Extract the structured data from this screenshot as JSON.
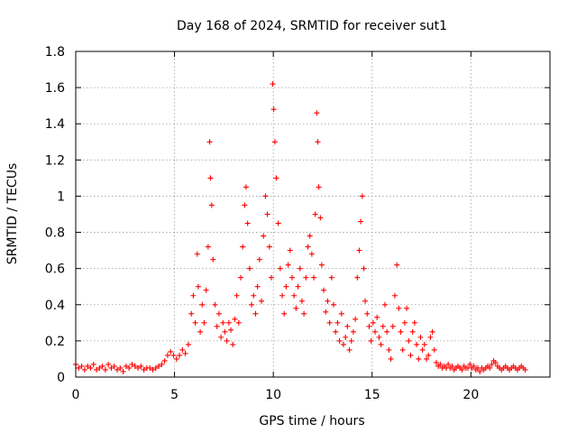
{
  "chart_data": {
    "type": "scatter",
    "title": "Day 168 of 2024, SRMTID for receiver sut1",
    "xlabel": "GPS time / hours",
    "ylabel": "SRMTID / TECUs",
    "xlim": [
      0,
      24
    ],
    "ylim": [
      0,
      1.8
    ],
    "xticks": [
      0,
      5,
      10,
      15,
      20
    ],
    "xtick_labels": [
      "0",
      "5",
      "10",
      "15",
      "20"
    ],
    "yticks": [
      0,
      0.2,
      0.4,
      0.6,
      0.8,
      1.0,
      1.2,
      1.4,
      1.6,
      1.8
    ],
    "ytick_labels": [
      "0",
      "0.2",
      "0.4",
      "0.6",
      "0.8",
      "1",
      "1.2",
      "1.4",
      "1.6",
      "1.8"
    ],
    "grid": true,
    "marker": "plus",
    "series": [
      {
        "name": "SRMTID",
        "color": "#ff0000",
        "points": [
          [
            0.0,
            0.07
          ],
          [
            0.15,
            0.05
          ],
          [
            0.3,
            0.06
          ],
          [
            0.45,
            0.04
          ],
          [
            0.6,
            0.06
          ],
          [
            0.75,
            0.05
          ],
          [
            0.9,
            0.07
          ],
          [
            1.05,
            0.04
          ],
          [
            1.2,
            0.05
          ],
          [
            1.35,
            0.06
          ],
          [
            1.5,
            0.04
          ],
          [
            1.65,
            0.07
          ],
          [
            1.8,
            0.05
          ],
          [
            1.95,
            0.06
          ],
          [
            2.1,
            0.04
          ],
          [
            2.25,
            0.05
          ],
          [
            2.4,
            0.03
          ],
          [
            2.55,
            0.06
          ],
          [
            2.7,
            0.05
          ],
          [
            2.85,
            0.07
          ],
          [
            3.0,
            0.06
          ],
          [
            3.15,
            0.05
          ],
          [
            3.3,
            0.06
          ],
          [
            3.45,
            0.04
          ],
          [
            3.6,
            0.05
          ],
          [
            3.75,
            0.05
          ],
          [
            3.9,
            0.04
          ],
          [
            4.05,
            0.05
          ],
          [
            4.2,
            0.06
          ],
          [
            4.35,
            0.07
          ],
          [
            4.5,
            0.09
          ],
          [
            4.65,
            0.12
          ],
          [
            4.8,
            0.14
          ],
          [
            4.95,
            0.12
          ],
          [
            5.1,
            0.1
          ],
          [
            5.25,
            0.12
          ],
          [
            5.4,
            0.15
          ],
          [
            5.55,
            0.13
          ],
          [
            5.7,
            0.18
          ],
          [
            5.85,
            0.35
          ],
          [
            5.95,
            0.45
          ],
          [
            6.05,
            0.3
          ],
          [
            6.15,
            0.68
          ],
          [
            6.2,
            0.5
          ],
          [
            6.3,
            0.25
          ],
          [
            6.4,
            0.4
          ],
          [
            6.5,
            0.3
          ],
          [
            6.6,
            0.48
          ],
          [
            6.7,
            0.72
          ],
          [
            6.78,
            1.3
          ],
          [
            6.82,
            1.1
          ],
          [
            6.88,
            0.95
          ],
          [
            6.95,
            0.65
          ],
          [
            7.05,
            0.4
          ],
          [
            7.15,
            0.28
          ],
          [
            7.25,
            0.35
          ],
          [
            7.35,
            0.22
          ],
          [
            7.45,
            0.3
          ],
          [
            7.55,
            0.25
          ],
          [
            7.65,
            0.2
          ],
          [
            7.75,
            0.3
          ],
          [
            7.85,
            0.26
          ],
          [
            7.95,
            0.18
          ],
          [
            8.05,
            0.32
          ],
          [
            8.15,
            0.45
          ],
          [
            8.25,
            0.3
          ],
          [
            8.35,
            0.55
          ],
          [
            8.45,
            0.72
          ],
          [
            8.55,
            0.95
          ],
          [
            8.62,
            1.05
          ],
          [
            8.7,
            0.85
          ],
          [
            8.8,
            0.6
          ],
          [
            8.9,
            0.4
          ],
          [
            9.0,
            0.45
          ],
          [
            9.1,
            0.35
          ],
          [
            9.2,
            0.5
          ],
          [
            9.3,
            0.65
          ],
          [
            9.4,
            0.42
          ],
          [
            9.5,
            0.78
          ],
          [
            9.6,
            1.0
          ],
          [
            9.7,
            0.9
          ],
          [
            9.8,
            0.72
          ],
          [
            9.9,
            0.55
          ],
          [
            9.97,
            1.62
          ],
          [
            10.02,
            1.48
          ],
          [
            10.08,
            1.3
          ],
          [
            10.15,
            1.1
          ],
          [
            10.25,
            0.85
          ],
          [
            10.35,
            0.6
          ],
          [
            10.45,
            0.45
          ],
          [
            10.55,
            0.35
          ],
          [
            10.65,
            0.5
          ],
          [
            10.75,
            0.62
          ],
          [
            10.85,
            0.7
          ],
          [
            10.95,
            0.55
          ],
          [
            11.05,
            0.45
          ],
          [
            11.15,
            0.38
          ],
          [
            11.25,
            0.5
          ],
          [
            11.35,
            0.6
          ],
          [
            11.45,
            0.42
          ],
          [
            11.55,
            0.35
          ],
          [
            11.65,
            0.55
          ],
          [
            11.75,
            0.72
          ],
          [
            11.85,
            0.78
          ],
          [
            11.95,
            0.68
          ],
          [
            12.05,
            0.55
          ],
          [
            12.12,
            0.9
          ],
          [
            12.2,
            1.46
          ],
          [
            12.25,
            1.3
          ],
          [
            12.3,
            1.05
          ],
          [
            12.38,
            0.88
          ],
          [
            12.45,
            0.62
          ],
          [
            12.55,
            0.48
          ],
          [
            12.65,
            0.36
          ],
          [
            12.75,
            0.42
          ],
          [
            12.85,
            0.3
          ],
          [
            12.95,
            0.55
          ],
          [
            13.05,
            0.4
          ],
          [
            13.15,
            0.25
          ],
          [
            13.25,
            0.3
          ],
          [
            13.35,
            0.2
          ],
          [
            13.45,
            0.35
          ],
          [
            13.55,
            0.18
          ],
          [
            13.65,
            0.22
          ],
          [
            13.75,
            0.28
          ],
          [
            13.85,
            0.15
          ],
          [
            13.95,
            0.2
          ],
          [
            14.05,
            0.25
          ],
          [
            14.15,
            0.32
          ],
          [
            14.25,
            0.55
          ],
          [
            14.35,
            0.7
          ],
          [
            14.42,
            0.86
          ],
          [
            14.5,
            1.0
          ],
          [
            14.58,
            0.6
          ],
          [
            14.65,
            0.42
          ],
          [
            14.75,
            0.35
          ],
          [
            14.85,
            0.28
          ],
          [
            14.95,
            0.2
          ],
          [
            15.05,
            0.3
          ],
          [
            15.15,
            0.25
          ],
          [
            15.25,
            0.33
          ],
          [
            15.35,
            0.22
          ],
          [
            15.45,
            0.18
          ],
          [
            15.55,
            0.28
          ],
          [
            15.65,
            0.4
          ],
          [
            15.75,
            0.25
          ],
          [
            15.85,
            0.15
          ],
          [
            15.95,
            0.1
          ],
          [
            16.05,
            0.28
          ],
          [
            16.15,
            0.45
          ],
          [
            16.25,
            0.62
          ],
          [
            16.35,
            0.38
          ],
          [
            16.45,
            0.25
          ],
          [
            16.55,
            0.15
          ],
          [
            16.65,
            0.3
          ],
          [
            16.75,
            0.38
          ],
          [
            16.85,
            0.2
          ],
          [
            16.95,
            0.12
          ],
          [
            17.05,
            0.25
          ],
          [
            17.15,
            0.3
          ],
          [
            17.25,
            0.18
          ],
          [
            17.35,
            0.1
          ],
          [
            17.45,
            0.22
          ],
          [
            17.55,
            0.15
          ],
          [
            17.65,
            0.18
          ],
          [
            17.75,
            0.1
          ],
          [
            17.85,
            0.12
          ],
          [
            17.95,
            0.22
          ],
          [
            18.05,
            0.25
          ],
          [
            18.15,
            0.15
          ],
          [
            18.25,
            0.08
          ],
          [
            18.35,
            0.06
          ],
          [
            18.45,
            0.07
          ],
          [
            18.55,
            0.05
          ],
          [
            18.65,
            0.06
          ],
          [
            18.75,
            0.05
          ],
          [
            18.85,
            0.07
          ],
          [
            18.95,
            0.05
          ],
          [
            19.05,
            0.06
          ],
          [
            19.15,
            0.04
          ],
          [
            19.25,
            0.05
          ],
          [
            19.35,
            0.06
          ],
          [
            19.45,
            0.05
          ],
          [
            19.55,
            0.04
          ],
          [
            19.65,
            0.06
          ],
          [
            19.75,
            0.05
          ],
          [
            19.85,
            0.05
          ],
          [
            19.95,
            0.07
          ],
          [
            20.05,
            0.05
          ],
          [
            20.15,
            0.06
          ],
          [
            20.25,
            0.04
          ],
          [
            20.35,
            0.05
          ],
          [
            20.45,
            0.03
          ],
          [
            20.55,
            0.05
          ],
          [
            20.65,
            0.04
          ],
          [
            20.75,
            0.05
          ],
          [
            20.85,
            0.06
          ],
          [
            20.95,
            0.05
          ],
          [
            21.05,
            0.07
          ],
          [
            21.15,
            0.09
          ],
          [
            21.25,
            0.08
          ],
          [
            21.35,
            0.06
          ],
          [
            21.45,
            0.05
          ],
          [
            21.55,
            0.04
          ],
          [
            21.65,
            0.05
          ],
          [
            21.75,
            0.06
          ],
          [
            21.85,
            0.05
          ],
          [
            21.95,
            0.04
          ],
          [
            22.05,
            0.05
          ],
          [
            22.15,
            0.06
          ],
          [
            22.25,
            0.05
          ],
          [
            22.35,
            0.04
          ],
          [
            22.45,
            0.05
          ],
          [
            22.55,
            0.06
          ],
          [
            22.65,
            0.05
          ],
          [
            22.75,
            0.04
          ]
        ]
      }
    ]
  }
}
